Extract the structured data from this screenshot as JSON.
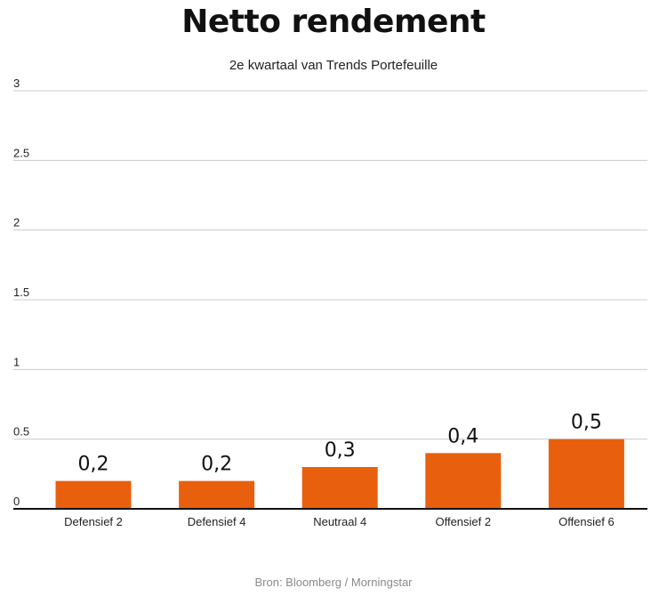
{
  "header": {
    "title": "Netto rendement",
    "subtitle": "2e kwartaal van Trends Portefeuille"
  },
  "footer": {
    "source": "Bron: Bloomberg / Morningstar"
  },
  "colors": {
    "bar": "#E8600E",
    "grid": "#cccccc",
    "axis": "#111111"
  },
  "chart_data": {
    "type": "bar",
    "title": "Netto rendement",
    "subtitle": "2e kwartaal van Trends Portefeuille",
    "categories": [
      "Defensief 2",
      "Defensief 4",
      "Neutraal 4",
      "Offensief 2",
      "Offensief 6"
    ],
    "values": [
      0.2,
      0.2,
      0.3,
      0.4,
      0.5
    ],
    "value_labels": [
      "0,2",
      "0,2",
      "0,3",
      "0,4",
      "0,5"
    ],
    "yticks": [
      0,
      0.5,
      1,
      1.5,
      2,
      2.5,
      3
    ],
    "ytick_labels": [
      "0",
      "0.5",
      "1",
      "1.5",
      "2",
      "2.5",
      "3"
    ],
    "ylim": [
      0,
      3
    ],
    "grid": true,
    "legend": "none"
  }
}
